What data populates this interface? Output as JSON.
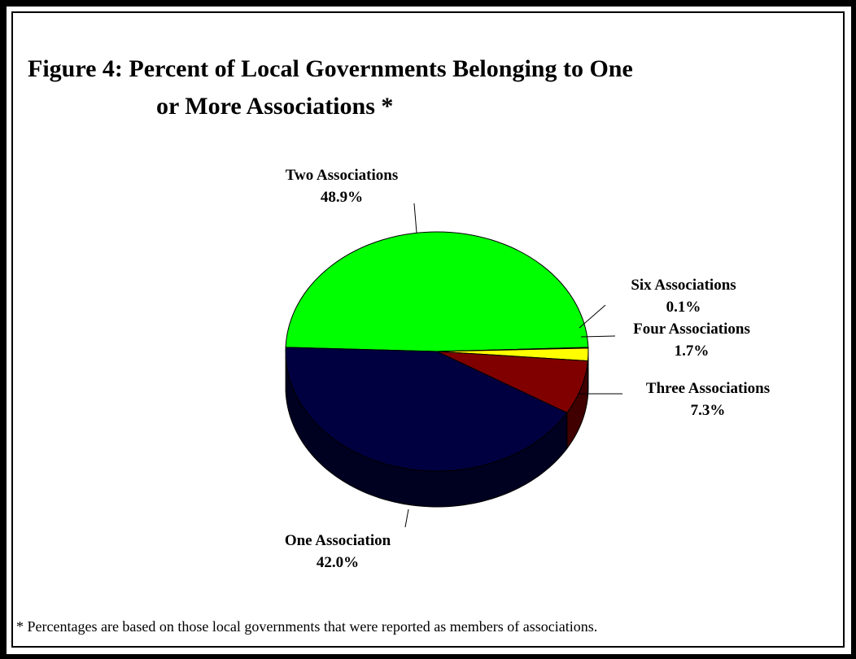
{
  "figure": {
    "title_line1": "Figure 4:  Percent of Local Governments Belonging to One",
    "title_line2": "or More Associations *",
    "footnote": "* Percentages are based on those local governments that were reported as members of associations."
  },
  "chart_data": {
    "type": "pie",
    "title": "Figure 4:  Percent of Local Governments Belonging to One or More Associations *",
    "slices": [
      {
        "label": "Two Associations",
        "value_label": "48.9%",
        "value": 48.9,
        "color": "#00ff00",
        "side_color": "#008000"
      },
      {
        "label": "Six Associations",
        "value_label": "0.1%",
        "value": 0.1,
        "color": "#ff00ff",
        "side_color": "#800080"
      },
      {
        "label": "Four Associations",
        "value_label": "1.7%",
        "value": 1.7,
        "color": "#ffff00",
        "side_color": "#808000"
      },
      {
        "label": "Three Associations",
        "value_label": "7.3%",
        "value": 7.3,
        "color": "#800000",
        "side_color": "#400000"
      },
      {
        "label": "One Association",
        "value_label": "42.0%",
        "value": 42.0,
        "color": "#000040",
        "side_color": "#000020"
      }
    ],
    "three_d": true
  }
}
